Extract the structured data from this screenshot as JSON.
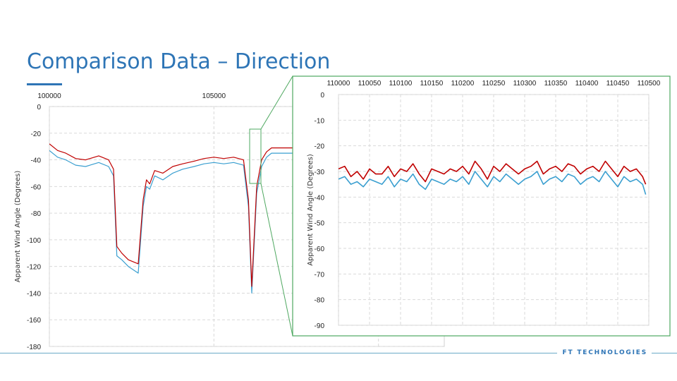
{
  "slide": {
    "title": "Comparison Data – Direction",
    "brand": "FT TECHNOLOGIES",
    "accent_color": "#2e75b6",
    "footer_rule_color": "#6aaac8",
    "zoom_frame_color": "#4ea860"
  },
  "chart_data": [
    {
      "type": "line",
      "title": "",
      "xlabel": "",
      "ylabel": "Apparent Wind Angle (Degrees)",
      "xlim": [
        100000,
        112000
      ],
      "ylim": [
        -180,
        0
      ],
      "x_ticks": [
        100000,
        105000,
        110000
      ],
      "y_ticks": [
        0,
        -20,
        -40,
        -60,
        -80,
        -100,
        -120,
        -140,
        -160,
        -180
      ],
      "x_axis_position": "top",
      "grid": true,
      "legend": "none",
      "series": [
        {
          "color": "#3a9fd0",
          "x": [
            100000,
            100250,
            100500,
            100800,
            101100,
            101500,
            101800,
            101950,
            102050,
            102200,
            102400,
            102700,
            102850,
            102950,
            103050,
            103200,
            103450,
            103750,
            104050,
            104400,
            104700,
            105000,
            105300,
            105600,
            105900,
            106050,
            106150,
            106300,
            106450,
            106600,
            106750,
            107000,
            107300,
            107700,
            108200,
            108700,
            109200,
            109700,
            110200,
            110500,
            111000,
            111500,
            112000
          ],
          "y": [
            -33,
            -38,
            -40,
            -44,
            -45,
            -42,
            -45,
            -52,
            -112,
            -115,
            -120,
            -125,
            -75,
            -60,
            -62,
            -52,
            -55,
            -50,
            -47,
            -45,
            -43,
            -42,
            -43,
            -42,
            -44,
            -75,
            -140,
            -65,
            -45,
            -38,
            -35,
            -35,
            -35,
            -35,
            -35,
            -35,
            -35,
            -35,
            -34,
            -34,
            -35,
            -35,
            -35
          ]
        },
        {
          "color": "#c00000",
          "x": [
            100000,
            100250,
            100500,
            100800,
            101100,
            101500,
            101800,
            101950,
            102050,
            102200,
            102400,
            102700,
            102850,
            102950,
            103050,
            103200,
            103450,
            103750,
            104050,
            104400,
            104700,
            105000,
            105300,
            105600,
            105900,
            106050,
            106150,
            106300,
            106450,
            106600,
            106750,
            107000,
            107300,
            107700,
            108200,
            108700,
            109200,
            109700,
            110200,
            110500,
            111000,
            111500,
            112000
          ],
          "y": [
            -28,
            -33,
            -35,
            -39,
            -40,
            -37,
            -40,
            -47,
            -105,
            -110,
            -115,
            -118,
            -70,
            -55,
            -58,
            -48,
            -50,
            -45,
            -43,
            -41,
            -39,
            -38,
            -39,
            -38,
            -40,
            -70,
            -135,
            -60,
            -40,
            -34,
            -31,
            -31,
            -31,
            -31,
            -31,
            -31,
            -31,
            -31,
            -30,
            -30,
            -31,
            -31,
            -31
          ]
        }
      ]
    },
    {
      "type": "line",
      "title": "",
      "xlabel": "",
      "ylabel": "Apparent Wind Angle (Degrees)",
      "xlim": [
        110000,
        110500
      ],
      "ylim": [
        -90,
        0
      ],
      "x_ticks": [
        110000,
        110050,
        110100,
        110150,
        110200,
        110250,
        110300,
        110350,
        110400,
        110450,
        110500
      ],
      "y_ticks": [
        0,
        -10,
        -20,
        -30,
        -40,
        -50,
        -60,
        -70,
        -80,
        -90
      ],
      "x_axis_position": "top",
      "grid": true,
      "legend": "none",
      "series": [
        {
          "color": "#3a9fd0",
          "x": [
            110000,
            110010,
            110020,
            110030,
            110040,
            110050,
            110060,
            110070,
            110080,
            110090,
            110100,
            110110,
            110120,
            110130,
            110140,
            110150,
            110160,
            110170,
            110180,
            110190,
            110200,
            110210,
            110220,
            110230,
            110240,
            110250,
            110260,
            110270,
            110280,
            110290,
            110300,
            110310,
            110320,
            110330,
            110340,
            110350,
            110360,
            110370,
            110380,
            110390,
            110400,
            110410,
            110420,
            110430,
            110440,
            110450,
            110460,
            110470,
            110480,
            110490,
            110495
          ],
          "y": [
            -33,
            -32,
            -35,
            -34,
            -36,
            -33,
            -34,
            -35,
            -32,
            -36,
            -33,
            -34,
            -31,
            -35,
            -37,
            -33,
            -34,
            -35,
            -33,
            -34,
            -32,
            -35,
            -30,
            -33,
            -36,
            -32,
            -34,
            -31,
            -33,
            -35,
            -33,
            -32,
            -30,
            -35,
            -33,
            -32,
            -34,
            -31,
            -32,
            -35,
            -33,
            -32,
            -34,
            -30,
            -33,
            -36,
            -32,
            -34,
            -33,
            -35,
            -39
          ]
        },
        {
          "color": "#c00000",
          "x": [
            110000,
            110010,
            110020,
            110030,
            110040,
            110050,
            110060,
            110070,
            110080,
            110090,
            110100,
            110110,
            110120,
            110130,
            110140,
            110150,
            110160,
            110170,
            110180,
            110190,
            110200,
            110210,
            110220,
            110230,
            110240,
            110250,
            110260,
            110270,
            110280,
            110290,
            110300,
            110310,
            110320,
            110330,
            110340,
            110350,
            110360,
            110370,
            110380,
            110390,
            110400,
            110410,
            110420,
            110430,
            110440,
            110450,
            110460,
            110470,
            110480,
            110490,
            110495
          ],
          "y": [
            -29,
            -28,
            -32,
            -30,
            -33,
            -29,
            -31,
            -31,
            -28,
            -32,
            -29,
            -30,
            -27,
            -31,
            -34,
            -29,
            -30,
            -31,
            -29,
            -30,
            -28,
            -31,
            -26,
            -29,
            -33,
            -28,
            -30,
            -27,
            -29,
            -31,
            -29,
            -28,
            -26,
            -31,
            -29,
            -28,
            -30,
            -27,
            -28,
            -31,
            -29,
            -28,
            -30,
            -26,
            -29,
            -32,
            -28,
            -30,
            -29,
            -32,
            -35
          ]
        }
      ]
    }
  ]
}
